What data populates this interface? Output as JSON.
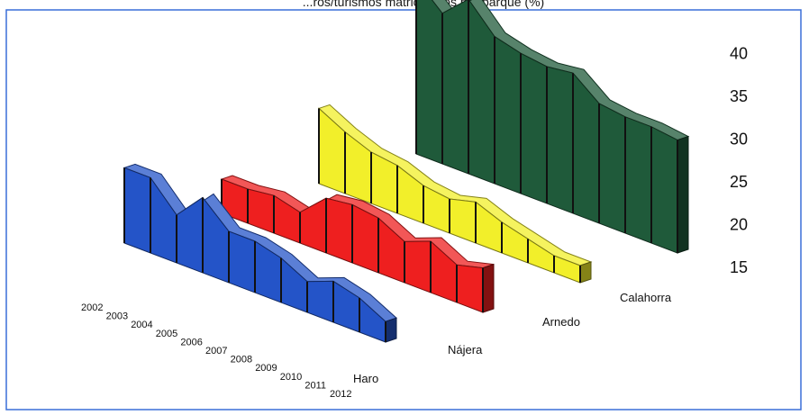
{
  "chart_data": {
    "type": "area",
    "title": "...ros/turismos matriculados por parque (%)",
    "ylim": [
      15,
      42
    ],
    "yticks": [
      15,
      20,
      25,
      30,
      35,
      40
    ],
    "categories": [
      "2002",
      "2003",
      "2004",
      "2005",
      "2006",
      "2007",
      "2008",
      "2009",
      "2010",
      "2011",
      "2012"
    ],
    "series": [
      {
        "name": "Calahorra",
        "color": "#1f5a3a",
        "values": [
          40.5,
          37.0,
          40.5,
          36.5,
          35.5,
          35.0,
          35.5,
          32.5,
          32.0,
          32.0,
          31.5
        ]
      },
      {
        "name": "Arnedo",
        "color": "#f2ef2a",
        "values": [
          26.0,
          24.0,
          22.5,
          22.0,
          20.5,
          20.0,
          21.0,
          19.5,
          18.5,
          17.5,
          17.5
        ]
      },
      {
        "name": "Nájera",
        "color": "#ee1f1f",
        "values": [
          20.0,
          20.0,
          20.5,
          19.5,
          23.0,
          23.5,
          23.0,
          21.0,
          22.5,
          20.5,
          21.5
        ]
      },
      {
        "name": "Haro",
        "color": "#2454c8",
        "values": [
          26.0,
          26.0,
          22.0,
          26.0,
          22.5,
          22.5,
          21.5,
          19.5,
          21.0,
          20.0,
          18.0
        ]
      }
    ]
  }
}
